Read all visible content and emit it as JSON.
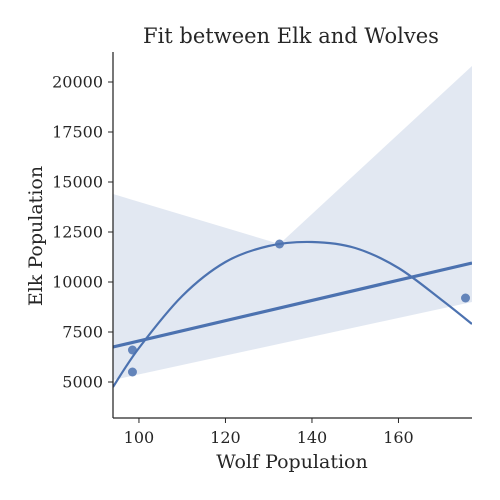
{
  "chart_data": {
    "type": "scatter",
    "title": "Fit between Elk and Wolves",
    "xlabel": "Wolf Population",
    "ylabel": "Elk Population",
    "xlim": [
      94,
      177
    ],
    "ylim": [
      3200,
      21500
    ],
    "xticks": [
      100,
      120,
      140,
      160
    ],
    "yticks": [
      5000,
      7500,
      10000,
      12500,
      15000,
      17500,
      20000
    ],
    "grid": false,
    "points": [
      {
        "x": 98.5,
        "y": 6600
      },
      {
        "x": 98.5,
        "y": 5500
      },
      {
        "x": 132.5,
        "y": 11900
      },
      {
        "x": 175.5,
        "y": 9200
      }
    ],
    "regression_line": [
      {
        "x": 94,
        "y": 6750
      },
      {
        "x": 177,
        "y": 10950
      }
    ],
    "confidence_band_upper": [
      {
        "x": 94,
        "y": 14400
      },
      {
        "x": 132.5,
        "y": 11900
      },
      {
        "x": 177,
        "y": 20800
      }
    ],
    "confidence_band_lower": [
      {
        "x": 94,
        "y": 5100
      },
      {
        "x": 177,
        "y": 9000
      }
    ],
    "fit_curve": [
      {
        "x": 94,
        "y": 4750
      },
      {
        "x": 100,
        "y": 6700
      },
      {
        "x": 110,
        "y": 9300
      },
      {
        "x": 120,
        "y": 11000
      },
      {
        "x": 130,
        "y": 11800
      },
      {
        "x": 140,
        "y": 12000
      },
      {
        "x": 150,
        "y": 11700
      },
      {
        "x": 160,
        "y": 10700
      },
      {
        "x": 170,
        "y": 9100
      },
      {
        "x": 177,
        "y": 7900
      }
    ],
    "colors": {
      "series": "#4c72b0",
      "axis": "#262626"
    }
  }
}
